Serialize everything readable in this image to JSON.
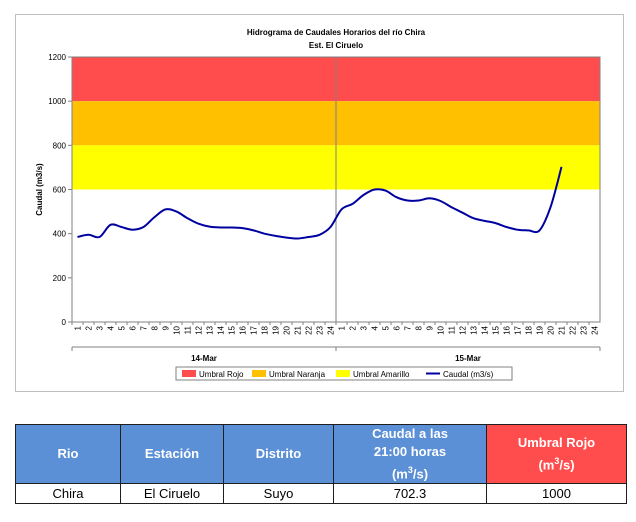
{
  "chart_data": {
    "type": "line",
    "title": "Hidrograma de Caudales Horarios del río Chira",
    "subtitle": "Est. El Ciruelo",
    "ylabel": "Caudal  (m3/s)",
    "xlabel": "",
    "ylim": [
      0,
      1200
    ],
    "yticks": [
      "0",
      "200",
      "400",
      "600",
      "800",
      "1000",
      "1200"
    ],
    "day_groups": [
      {
        "label": "14-Mar",
        "hours": [
          "1",
          "2",
          "3",
          "4",
          "5",
          "6",
          "7",
          "8",
          "9",
          "10",
          "11",
          "12",
          "13",
          "14",
          "15",
          "16",
          "17",
          "18",
          "19",
          "20",
          "21",
          "22",
          "23",
          "24"
        ]
      },
      {
        "label": "15-Mar",
        "hours": [
          "1",
          "2",
          "3",
          "4",
          "5",
          "6",
          "7",
          "8",
          "9",
          "10",
          "11",
          "12",
          "13",
          "14",
          "15",
          "16",
          "17",
          "18",
          "19",
          "20",
          "21",
          "22",
          "23",
          "24"
        ]
      }
    ],
    "thresholds": [
      {
        "name": "Umbral Rojo",
        "from": 1000,
        "to": 1200,
        "color": "#ff4d4d"
      },
      {
        "name": "Umbral Naranja",
        "from": 800,
        "to": 1000,
        "color": "#ffc000"
      },
      {
        "name": "Umbral Amarillo",
        "from": 600,
        "to": 800,
        "color": "#ffff00"
      }
    ],
    "series": [
      {
        "name": "Caudal (m3/s)",
        "color": "#0000a0",
        "values": [
          385,
          395,
          385,
          440,
          430,
          418,
          430,
          475,
          510,
          500,
          470,
          445,
          432,
          428,
          428,
          425,
          415,
          400,
          390,
          382,
          378,
          385,
          395,
          430,
          510,
          535,
          575,
          600,
          595,
          565,
          550,
          550,
          560,
          548,
          520,
          495,
          470,
          458,
          448,
          430,
          418,
          415,
          415,
          520,
          702.3
        ]
      }
    ],
    "legend": {
      "position": "bottom",
      "entries": [
        "Umbral Rojo",
        "Umbral Naranja",
        "Umbral Amarillo",
        "Caudal (m3/s)"
      ]
    }
  },
  "table": {
    "headers": {
      "rio": "Rio",
      "estacion": "Estación",
      "distrito": "Distrito",
      "caudal_line1": "Caudal a las",
      "caudal_line2": "21:00 horas",
      "caudal_unit": "(m",
      "caudal_unit_sup": "3",
      "caudal_unit_end": "/s)",
      "umbral_line1": "Umbral Rojo",
      "umbral_unit": "(m",
      "umbral_unit_sup": "3",
      "umbral_unit_end": "/s)"
    },
    "row": {
      "rio": "Chira",
      "estacion": "El Ciruelo",
      "distrito": "Suyo",
      "caudal": "702.3",
      "umbral": "1000"
    }
  }
}
